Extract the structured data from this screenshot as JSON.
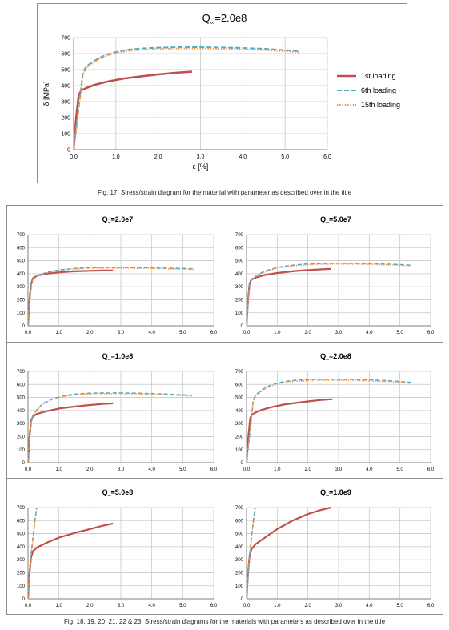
{
  "captions": {
    "fig17": "Fig. 17. Stress/strain diagram for the material with parameter as described over in the title",
    "fig18_23": "Fig. 18, 19, 20, 21, 22 & 23. Stress/strain diagrams for the materials with parameters as described over in the title"
  },
  "colors": {
    "first": "#c0504d",
    "sixth": "#4bacc6",
    "fifteenth": "#f79646",
    "grid": "#c8c8c8"
  },
  "chart_data": [
    {
      "type": "line",
      "title_main": "Q",
      "title_sub": "∞",
      "title_rest": "=2.0e8",
      "xlabel": "ε [%]",
      "ylabel": "δ [MPa]",
      "xlim": [
        0,
        6
      ],
      "ylim": [
        0,
        700
      ],
      "xticks": [
        "0.0",
        "1.0",
        "2.0",
        "3.0",
        "4.0",
        "5.0",
        "6.0"
      ],
      "yticks": [
        "0",
        "100",
        "200",
        "300",
        "400",
        "500",
        "600",
        "700"
      ],
      "grid": true,
      "legend": "right",
      "series": [
        {
          "name": "1st loading",
          "style": "solid",
          "x": [
            0,
            0.06,
            0.12,
            0.18,
            0.3,
            0.5,
            0.8,
            1.2,
            1.6,
            2.0,
            2.4,
            2.8
          ],
          "y": [
            0,
            200,
            340,
            370,
            385,
            405,
            425,
            445,
            458,
            470,
            480,
            487
          ]
        },
        {
          "name": "6th loading",
          "style": "dash",
          "x": [
            0,
            0.08,
            0.15,
            0.22,
            0.3,
            0.45,
            0.6,
            0.8,
            1.0,
            1.3,
            1.6,
            2.0,
            2.5,
            3.0,
            3.5,
            4.0,
            4.5,
            5.0,
            5.35
          ],
          "y": [
            0,
            170,
            330,
            480,
            520,
            548,
            572,
            595,
            610,
            625,
            632,
            637,
            640,
            640,
            638,
            635,
            630,
            622,
            615
          ]
        },
        {
          "name": "15th loading",
          "style": "dot",
          "x": [
            0,
            0.08,
            0.15,
            0.22,
            0.3,
            0.45,
            0.6,
            0.8,
            1.0,
            1.3,
            1.6,
            2.0,
            2.5,
            3.0,
            3.5,
            4.0,
            4.5,
            5.0,
            5.35
          ],
          "y": [
            0,
            165,
            320,
            470,
            512,
            540,
            565,
            588,
            603,
            617,
            624,
            629,
            632,
            632,
            630,
            627,
            622,
            615,
            608
          ]
        }
      ]
    },
    {
      "type": "line",
      "title_main": "Q",
      "title_sub": "∞",
      "title_rest": "=2.0e7",
      "xlim": [
        0,
        6
      ],
      "ylim": [
        0,
        700
      ],
      "xticks": [
        "0.0",
        "1.0",
        "2.0",
        "3.0",
        "4.0",
        "5.0",
        "6.0"
      ],
      "yticks": [
        "0",
        "100",
        "200",
        "300",
        "400",
        "500",
        "600",
        "700"
      ],
      "series": [
        {
          "name": "1st loading",
          "style": "solid",
          "x": [
            0,
            0.05,
            0.1,
            0.16,
            0.3,
            0.6,
            1.0,
            1.5,
            2.0,
            2.4,
            2.75
          ],
          "y": [
            0,
            200,
            320,
            365,
            385,
            400,
            410,
            418,
            422,
            424,
            425
          ]
        },
        {
          "name": "6th loading",
          "style": "dash",
          "x": [
            0,
            0.05,
            0.1,
            0.16,
            0.3,
            0.6,
            1.0,
            1.5,
            2.0,
            3.0,
            4.0,
            5.0,
            5.35
          ],
          "y": [
            0,
            190,
            310,
            360,
            385,
            410,
            428,
            440,
            447,
            448,
            445,
            440,
            437
          ]
        },
        {
          "name": "15th loading",
          "style": "dot",
          "x": [
            0,
            0.05,
            0.1,
            0.16,
            0.3,
            0.6,
            1.0,
            1.5,
            2.0,
            3.0,
            4.0,
            5.0,
            5.35
          ],
          "y": [
            0,
            185,
            305,
            355,
            380,
            405,
            423,
            435,
            442,
            443,
            440,
            435,
            432
          ]
        }
      ]
    },
    {
      "type": "line",
      "title_main": "Q",
      "title_sub": "∞",
      "title_rest": "=5.0e7",
      "xlim": [
        0,
        6
      ],
      "ylim": [
        0,
        700
      ],
      "xticks": [
        "0.0",
        "1.0",
        "2.0",
        "3.0",
        "4.0",
        "5.0",
        "6.0"
      ],
      "yticks": [
        "0",
        "100",
        "200",
        "300",
        "400",
        "500",
        "600",
        "700"
      ],
      "series": [
        {
          "name": "1st loading",
          "style": "solid",
          "x": [
            0,
            0.05,
            0.1,
            0.16,
            0.3,
            0.6,
            1.0,
            1.5,
            2.0,
            2.4,
            2.75
          ],
          "y": [
            0,
            200,
            320,
            355,
            370,
            390,
            405,
            418,
            428,
            433,
            437
          ]
        },
        {
          "name": "6th loading",
          "style": "dash",
          "x": [
            0,
            0.05,
            0.1,
            0.16,
            0.3,
            0.6,
            1.0,
            1.5,
            2.0,
            3.0,
            4.0,
            5.0,
            5.35
          ],
          "y": [
            0,
            190,
            310,
            355,
            385,
            420,
            448,
            465,
            475,
            480,
            478,
            470,
            465
          ]
        },
        {
          "name": "15th loading",
          "style": "dot",
          "x": [
            0,
            0.05,
            0.1,
            0.16,
            0.3,
            0.6,
            1.0,
            1.5,
            2.0,
            3.0,
            4.0,
            5.0,
            5.35
          ],
          "y": [
            0,
            185,
            305,
            350,
            380,
            415,
            443,
            460,
            470,
            475,
            472,
            465,
            460
          ]
        }
      ]
    },
    {
      "type": "line",
      "title_main": "Q",
      "title_sub": "∞",
      "title_rest": "=1.0e8",
      "xlim": [
        0,
        6
      ],
      "ylim": [
        0,
        700
      ],
      "xticks": [
        "0.0",
        "1.0",
        "2.0",
        "3.0",
        "4.0",
        "5.0",
        "6.0"
      ],
      "yticks": [
        "0",
        "100",
        "200",
        "300",
        "400",
        "500",
        "600",
        "700"
      ],
      "series": [
        {
          "name": "1st loading",
          "style": "solid",
          "x": [
            0,
            0.05,
            0.1,
            0.16,
            0.3,
            0.6,
            1.0,
            1.5,
            2.0,
            2.4,
            2.75
          ],
          "y": [
            0,
            200,
            320,
            355,
            375,
            395,
            415,
            430,
            442,
            450,
            455
          ]
        },
        {
          "name": "6th loading",
          "style": "dash",
          "x": [
            0,
            0.05,
            0.1,
            0.16,
            0.3,
            0.5,
            0.8,
            1.2,
            1.6,
            2.0,
            3.0,
            4.0,
            5.0,
            5.3
          ],
          "y": [
            0,
            190,
            310,
            360,
            410,
            455,
            490,
            515,
            527,
            533,
            535,
            530,
            520,
            515
          ]
        },
        {
          "name": "15th loading",
          "style": "dot",
          "x": [
            0,
            0.05,
            0.1,
            0.16,
            0.3,
            0.5,
            0.8,
            1.2,
            1.6,
            2.0,
            3.0,
            4.0,
            5.0,
            5.3
          ],
          "y": [
            0,
            185,
            305,
            355,
            405,
            450,
            485,
            510,
            522,
            528,
            530,
            525,
            515,
            510
          ]
        }
      ]
    },
    {
      "type": "line",
      "title_main": "Q",
      "title_sub": "∞",
      "title_rest": "=2.0e8",
      "xlim": [
        0,
        6
      ],
      "ylim": [
        0,
        700
      ],
      "xticks": [
        "0.0",
        "1.0",
        "2.0",
        "3.0",
        "4.0",
        "5.0",
        "6.0"
      ],
      "yticks": [
        "0",
        "100",
        "200",
        "300",
        "400",
        "500",
        "600",
        "700"
      ],
      "series": [
        {
          "name": "1st loading",
          "style": "solid",
          "x": [
            0,
            0.06,
            0.12,
            0.18,
            0.3,
            0.5,
            0.8,
            1.2,
            1.6,
            2.0,
            2.4,
            2.8
          ],
          "y": [
            0,
            200,
            340,
            370,
            385,
            405,
            425,
            445,
            458,
            470,
            480,
            487
          ]
        },
        {
          "name": "6th loading",
          "style": "dash",
          "x": [
            0,
            0.08,
            0.15,
            0.22,
            0.3,
            0.45,
            0.6,
            0.8,
            1.0,
            1.3,
            1.6,
            2.0,
            2.5,
            3.0,
            3.5,
            4.0,
            4.5,
            5.0,
            5.35
          ],
          "y": [
            0,
            170,
            330,
            480,
            520,
            548,
            572,
            595,
            610,
            625,
            632,
            637,
            640,
            640,
            638,
            635,
            630,
            622,
            615
          ]
        },
        {
          "name": "15th loading",
          "style": "dot",
          "x": [
            0,
            0.08,
            0.15,
            0.22,
            0.3,
            0.45,
            0.6,
            0.8,
            1.0,
            1.3,
            1.6,
            2.0,
            2.5,
            3.0,
            3.5,
            4.0,
            4.5,
            5.0,
            5.35
          ],
          "y": [
            0,
            165,
            320,
            470,
            512,
            540,
            565,
            588,
            603,
            617,
            624,
            629,
            632,
            632,
            630,
            627,
            622,
            615,
            608
          ]
        }
      ]
    },
    {
      "type": "line",
      "title_main": "Q",
      "title_sub": "∞",
      "title_rest": "=5.0e8",
      "xlim": [
        0,
        6
      ],
      "ylim": [
        0,
        700
      ],
      "xticks": [
        "0.0",
        "1.0",
        "2.0",
        "3.0",
        "4.0",
        "5.0",
        "6.0"
      ],
      "yticks": [
        "0",
        "100",
        "200",
        "300",
        "400",
        "500",
        "600",
        "700"
      ],
      "series": [
        {
          "name": "1st loading",
          "style": "solid",
          "x": [
            0,
            0.05,
            0.1,
            0.16,
            0.3,
            0.6,
            1.0,
            1.5,
            2.0,
            2.4,
            2.75
          ],
          "y": [
            0,
            200,
            320,
            365,
            395,
            430,
            470,
            505,
            535,
            560,
            578
          ]
        },
        {
          "name": "6th loading",
          "style": "dash",
          "x": [
            0,
            0.05,
            0.1,
            0.16,
            0.22,
            0.28
          ],
          "y": [
            0,
            200,
            340,
            470,
            590,
            700
          ]
        },
        {
          "name": "15th loading",
          "style": "dot",
          "x": [
            0,
            0.05,
            0.1,
            0.16,
            0.22,
            0.29
          ],
          "y": [
            0,
            195,
            335,
            465,
            585,
            700
          ]
        }
      ]
    },
    {
      "type": "line",
      "title_main": "Q",
      "title_sub": "∞",
      "title_rest": "=1.0e9",
      "xlim": [
        0,
        6
      ],
      "ylim": [
        0,
        700
      ],
      "xticks": [
        "0.0",
        "1.0",
        "2.0",
        "3.0",
        "4.0",
        "5.0",
        "6.0"
      ],
      "yticks": [
        "0",
        "100",
        "200",
        "300",
        "400",
        "500",
        "600",
        "700"
      ],
      "series": [
        {
          "name": "1st loading",
          "style": "solid",
          "x": [
            0,
            0.05,
            0.1,
            0.16,
            0.3,
            0.6,
            1.0,
            1.5,
            2.0,
            2.4,
            2.75
          ],
          "y": [
            0,
            200,
            330,
            380,
            420,
            470,
            535,
            600,
            650,
            680,
            700
          ]
        },
        {
          "name": "6th loading",
          "style": "dash",
          "x": [
            0,
            0.05,
            0.1,
            0.16,
            0.22,
            0.28
          ],
          "y": [
            0,
            200,
            340,
            470,
            590,
            700
          ]
        },
        {
          "name": "15th loading",
          "style": "dot",
          "x": [
            0,
            0.05,
            0.1,
            0.16,
            0.22,
            0.29
          ],
          "y": [
            0,
            195,
            335,
            465,
            585,
            700
          ]
        }
      ]
    }
  ]
}
